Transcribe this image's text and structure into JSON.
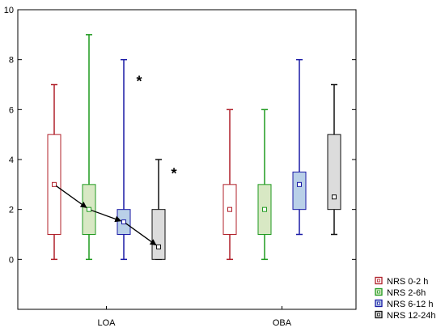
{
  "chart_data": {
    "type": "box",
    "categories": [
      "LOA",
      "OBA"
    ],
    "ylim": [
      -2,
      10
    ],
    "yticks": [
      0,
      2,
      4,
      6,
      8,
      10
    ],
    "grid": false,
    "legend_position": "bottom-right",
    "series": [
      {
        "name": "NRS 0-2 h",
        "color": "#b0202a",
        "fill": "#ffffff",
        "boxes": [
          {
            "min": 0,
            "q1": 1,
            "median": 3,
            "q3": 5,
            "max": 7
          },
          {
            "min": 0,
            "q1": 1,
            "median": 2,
            "q3": 3,
            "max": 6
          }
        ]
      },
      {
        "name": "NRS 2-6h",
        "color": "#1f9a1f",
        "fill": "#d8e8c4",
        "boxes": [
          {
            "min": 0,
            "q1": 1,
            "median": 2,
            "q3": 3,
            "max": 9
          },
          {
            "min": 0,
            "q1": 1,
            "median": 2,
            "q3": 3,
            "max": 6
          }
        ]
      },
      {
        "name": "NRS 6-12 h",
        "color": "#1a1aa6",
        "fill": "#b9d0e8",
        "boxes": [
          {
            "min": 0,
            "q1": 1,
            "median": 1.5,
            "q3": 2,
            "max": 8
          },
          {
            "min": 1,
            "q1": 2,
            "median": 3,
            "q3": 3.5,
            "max": 8
          }
        ]
      },
      {
        "name": "NRS 12-24h",
        "color": "#111111",
        "fill": "#dcdcdc",
        "boxes": [
          {
            "min": 0,
            "q1": 0,
            "median": 0.5,
            "q3": 2,
            "max": 4
          },
          {
            "min": 1,
            "q1": 2,
            "median": 2.5,
            "q3": 5,
            "max": 7
          }
        ]
      }
    ],
    "annotations": [
      {
        "text": "*",
        "category": 0,
        "series": 2,
        "y": 7.2
      },
      {
        "text": "*",
        "category": 0,
        "series": 3,
        "y": 3.5
      }
    ],
    "trend_arrows": {
      "category": 0,
      "points": [
        3,
        2,
        1.5,
        0.5
      ]
    }
  }
}
